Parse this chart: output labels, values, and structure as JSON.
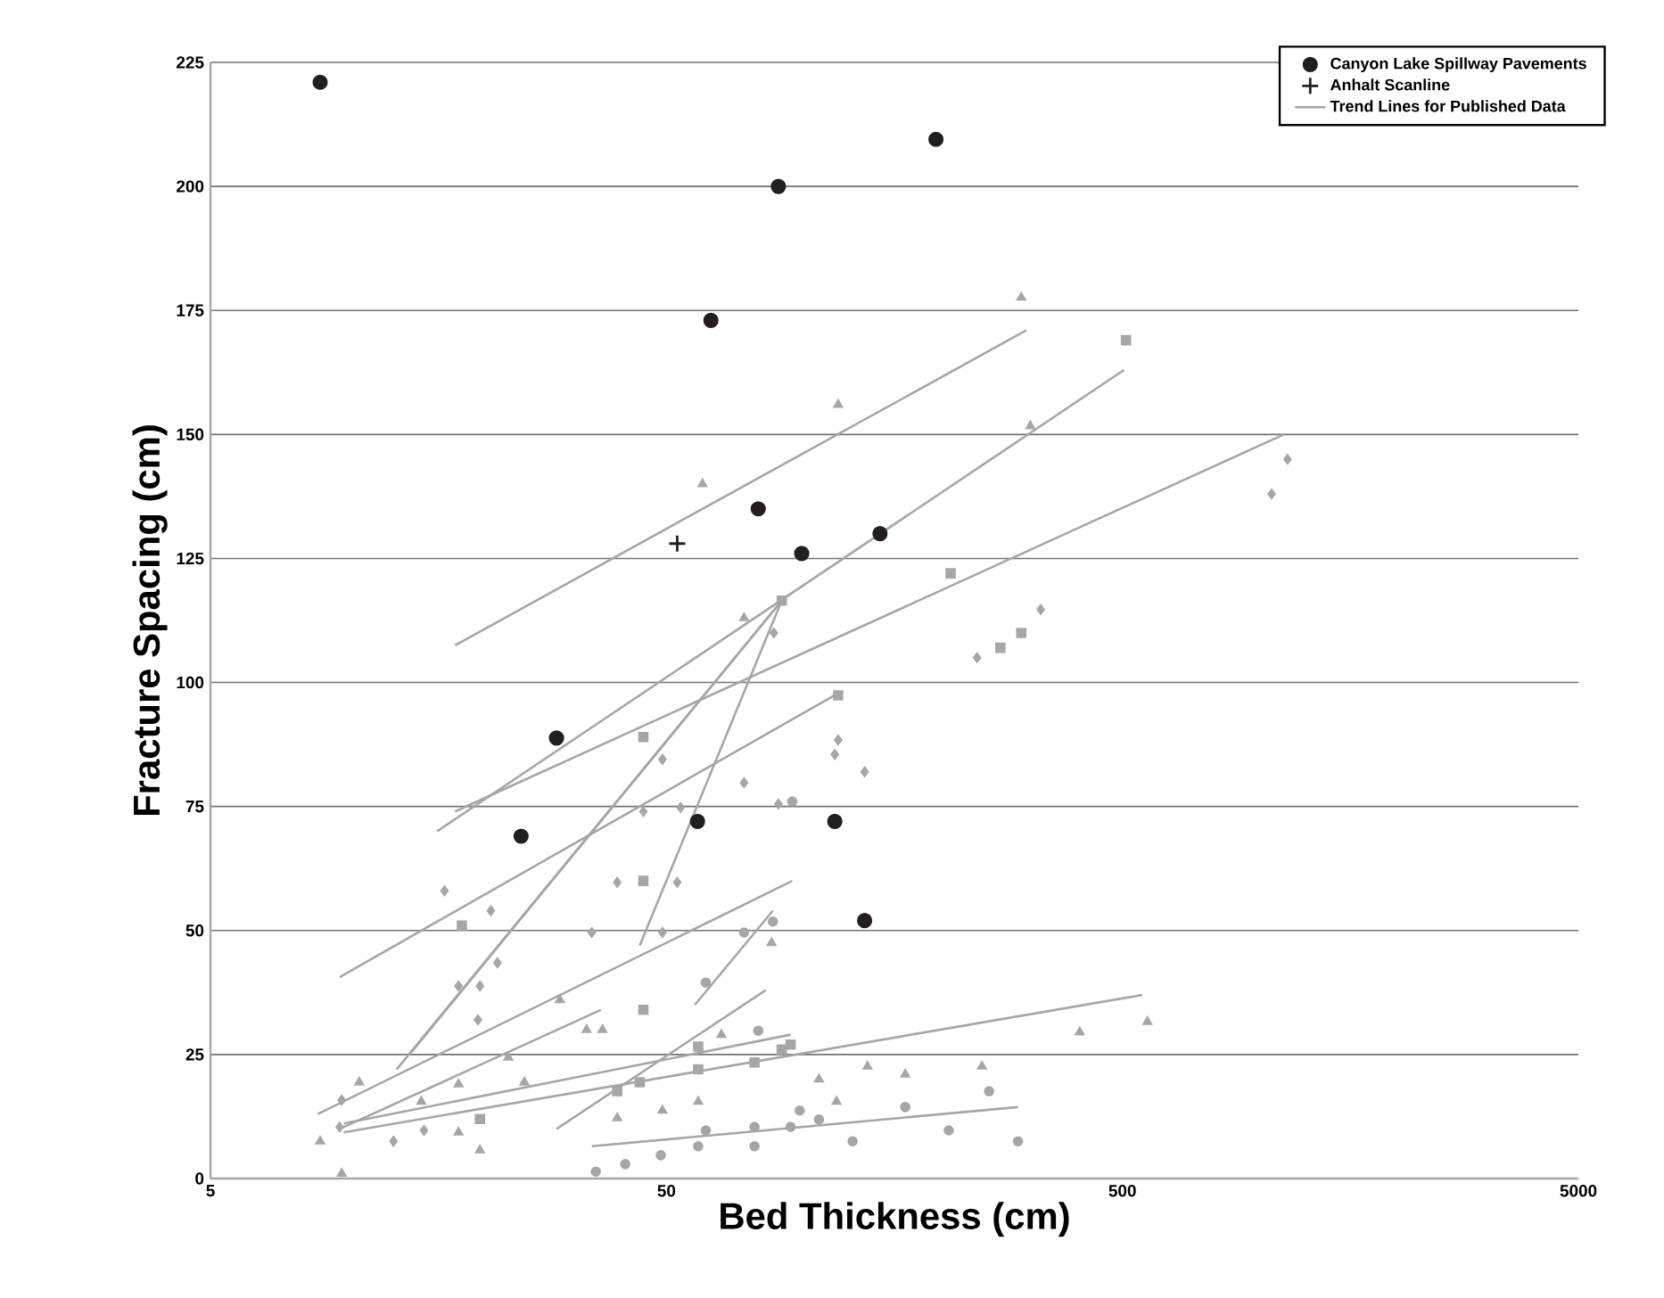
{
  "chart_data": {
    "type": "scatter",
    "xlabel": "Bed Thickness  (cm)",
    "ylabel": "Fracture Spacing (cm)",
    "xlim": [
      5,
      5000
    ],
    "ylim": [
      0,
      225
    ],
    "xticks": [
      5,
      50,
      500,
      5000
    ],
    "yticks": [
      0,
      25,
      50,
      75,
      100,
      125,
      150,
      175,
      200,
      225
    ],
    "log": "x",
    "grid": "y",
    "legend": "top right",
    "series": [
      {
        "marker": "square",
        "color": "#a6a6a6",
        "x": [
          509,
          210,
          270,
          300,
          89.5,
          119,
          44.5,
          44.5,
          17.8,
          44.5,
          19.5,
          39,
          43.7,
          58.7,
          58.7,
          93.6,
          78,
          89.5
        ],
        "values": [
          169,
          122,
          107,
          110,
          116.5,
          97.4,
          89,
          60,
          51,
          34,
          12,
          17.6,
          19.4,
          26.6,
          22,
          27,
          23.4,
          26
        ]
      },
      {
        "marker": "triangle",
        "color": "#a6a6a6",
        "x": [
          300,
          314,
          119,
          60,
          74,
          403,
          567,
          246,
          167,
          138,
          108,
          118,
          85,
          66,
          8.7,
          9.7,
          10.6,
          17.5,
          22.5,
          24.4,
          29.2,
          36.2,
          33.4,
          14.5,
          17.5,
          19.5,
          39,
          49,
          58.7
        ],
        "values": [
          177.6,
          151.7,
          156,
          140,
          113,
          29.5,
          31.6,
          22.6,
          21,
          22.6,
          20,
          15.5,
          47.5,
          29,
          7.5,
          1,
          19.4,
          19,
          24.4,
          19.4,
          36,
          30,
          30,
          15.5,
          9.3,
          5.7,
          12.2,
          13.7,
          15.5
        ]
      },
      {
        "marker": "circle",
        "color": "#a6a6a6",
        "x": [
          58.7,
          78,
          61,
          78,
          93.6,
          98,
          108,
          128,
          167,
          208,
          255,
          295,
          79.5,
          85.6,
          74,
          94.4,
          61,
          35,
          40.6,
          48.6
        ],
        "values": [
          6.5,
          6.5,
          9.7,
          10.4,
          10.4,
          13.7,
          11.9,
          7.5,
          14.4,
          9.7,
          17.6,
          7.5,
          29.8,
          51.8,
          49.6,
          76,
          39.5,
          1.4,
          2.9,
          4.7
        ]
      },
      {
        "marker": "diamond",
        "color": "#a6a6a6",
        "x": [
          1151,
          1062,
          331,
          240,
          86,
          119,
          117,
          136,
          74,
          88,
          16.3,
          20.6,
          17.5,
          19.5,
          21.3,
          19.3,
          44.5,
          49,
          53.7,
          39,
          49,
          34.3,
          52.8,
          12.6,
          14.7,
          9.7,
          9.6
        ],
        "values": [
          145,
          138,
          114.7,
          105,
          110,
          88.4,
          85.5,
          82,
          79.8,
          75.5,
          58,
          54,
          38.8,
          38.8,
          43.5,
          32,
          74,
          84.5,
          74.8,
          59.7,
          49.6,
          49.6,
          59.7,
          7.5,
          9.7,
          15.8,
          10.4
        ]
      },
      {
        "type": "line",
        "color": "#a6a6a6",
        "x": [
          15.7,
          504
        ],
        "values": [
          70,
          163
        ]
      },
      {
        "type": "line",
        "color": "#a6a6a6",
        "x": [
          17.2,
          1130
        ],
        "values": [
          74,
          150
        ]
      },
      {
        "type": "line",
        "color": "#a6a6a6",
        "x": [
          9.6,
          120
        ],
        "values": [
          40.6,
          98
        ]
      },
      {
        "type": "line",
        "color": "#a6a6a6",
        "x": [
          13.8,
          89.5
        ],
        "values": [
          25.5,
          116.5
        ]
      },
      {
        "type": "line",
        "color": "#a6a6a6",
        "x": [
          12.8,
          89.5
        ],
        "values": [
          22,
          116.5
        ]
      },
      {
        "type": "line",
        "color": "#a6a6a6",
        "x": [
          43.7,
          89.5
        ],
        "values": [
          47,
          116.5
        ]
      },
      {
        "type": "line",
        "color": "#a6a6a6",
        "x": [
          57.7,
          85.6
        ],
        "values": [
          35,
          54
        ]
      },
      {
        "type": "line",
        "color": "#a6a6a6",
        "x": [
          8.6,
          94.4
        ],
        "values": [
          13,
          60
        ]
      },
      {
        "type": "line",
        "color": "#a6a6a6",
        "x": [
          9.6,
          35.9
        ],
        "values": [
          10,
          34
        ]
      },
      {
        "type": "line",
        "color": "#a6a6a6",
        "x": [
          28.7,
          82.6
        ],
        "values": [
          10,
          38
        ]
      },
      {
        "type": "line",
        "color": "#a6a6a6",
        "x": [
          9.8,
          552
        ],
        "values": [
          9.3,
          37
        ]
      },
      {
        "type": "line",
        "color": "#a6a6a6",
        "x": [
          9.8,
          93.6
        ],
        "values": [
          11.1,
          29
        ]
      },
      {
        "type": "line",
        "color": "#a6a6a6",
        "x": [
          34.3,
          295
        ],
        "values": [
          6.5,
          14.4
        ]
      },
      {
        "marker": "circle",
        "name": "Canyon Lake Spillway Pavements",
        "color": "#231f20",
        "x": [
          8.7,
          195,
          88,
          62.6,
          79.5,
          99,
          147,
          28.7,
          24,
          58.5,
          117,
          136
        ],
        "values": [
          221,
          209.5,
          200,
          173,
          135,
          126,
          130,
          88.8,
          69,
          72,
          72,
          52
        ]
      },
      {
        "marker": "cross",
        "name": "Anhalt Scanline",
        "color": "#231f20",
        "x": [
          52.8
        ],
        "values": [
          128
        ]
      },
      {
        "type": "line",
        "name": "Trend Lines for Published Data",
        "color": "#a6a6a6",
        "x": [
          17.2,
          308
        ],
        "values": [
          107.5,
          171
        ]
      }
    ]
  }
}
